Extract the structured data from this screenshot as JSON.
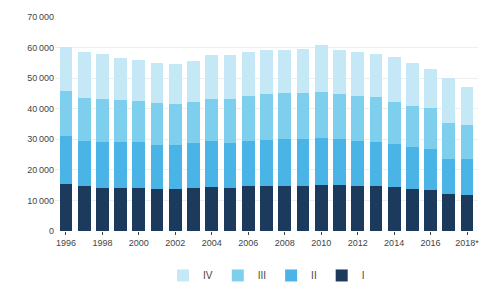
{
  "chart_data": {
    "type": "bar",
    "stacked": true,
    "categories": [
      "1996",
      null,
      "1998",
      null,
      "2000",
      null,
      "2002",
      null,
      "2004",
      null,
      "2006",
      null,
      "2008",
      null,
      "2010",
      null,
      "2012",
      null,
      "2014",
      null,
      "2016",
      null,
      "2018*"
    ],
    "series": [
      {
        "name": "I",
        "color": "#1b3a5c",
        "values": [
          15500,
          14800,
          14000,
          14200,
          14200,
          13800,
          13700,
          14000,
          14500,
          14200,
          14700,
          14700,
          14800,
          14800,
          15000,
          15000,
          14800,
          14800,
          14500,
          13800,
          13300,
          12200,
          11800
        ]
      },
      {
        "name": "II",
        "color": "#4ab4e6",
        "values": [
          15600,
          14500,
          15000,
          15000,
          14800,
          14400,
          14300,
          14800,
          15000,
          14700,
          14800,
          15200,
          15200,
          15200,
          15300,
          15000,
          14500,
          14400,
          13900,
          13800,
          13600,
          11500,
          11600
        ]
      },
      {
        "name": "III",
        "color": "#7ecfee",
        "values": [
          14800,
          14200,
          14200,
          13600,
          13600,
          13700,
          13500,
          13500,
          13800,
          14300,
          14600,
          14900,
          15000,
          15000,
          15200,
          14700,
          14700,
          14500,
          13700,
          13200,
          13200,
          11600,
          11200
        ]
      },
      {
        "name": "IV",
        "color": "#c5e8f7",
        "values": [
          14200,
          15000,
          14600,
          13800,
          13400,
          13200,
          13200,
          13400,
          14200,
          14400,
          14600,
          14500,
          14200,
          14600,
          15500,
          14600,
          14500,
          14300,
          14900,
          14200,
          12900,
          14900,
          12400
        ]
      }
    ],
    "ylim": [
      0,
      70000
    ],
    "yticks": [
      0,
      {
        "value": 10000,
        "label": "10 000"
      },
      {
        "value": 20000,
        "label": "20 000"
      },
      {
        "value": 30000,
        "label": "30 000"
      },
      {
        "value": 40000,
        "label": "40 000"
      },
      {
        "value": 50000,
        "label": "50 000"
      },
      {
        "value": 60000,
        "label": "60 000"
      },
      {
        "value": 70000,
        "label": "70 000"
      }
    ],
    "grid": true,
    "legend": "bottom"
  }
}
